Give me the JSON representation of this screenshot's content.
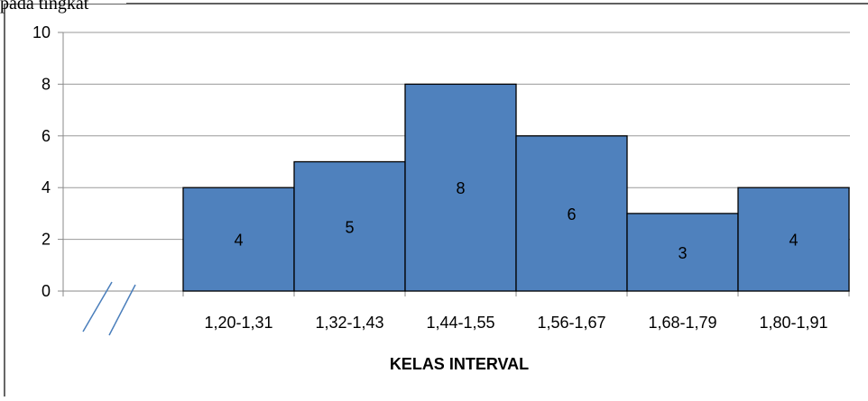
{
  "top_text": "pada tingkat",
  "chart_data": {
    "type": "bar",
    "title": "",
    "xlabel": "KELAS INTERVAL",
    "ylabel": "",
    "categories": [
      "1,20-1,31",
      "1,32-1,43",
      "1,44-1,55",
      "1,56-1,67",
      "1,68-1,79",
      "1,80-1,91"
    ],
    "values": [
      4,
      5,
      8,
      6,
      3,
      4
    ],
    "data_labels": [
      "4",
      "5",
      "8",
      "6",
      "3",
      "4"
    ],
    "ylim": [
      0,
      10
    ],
    "yticks": [
      0,
      2,
      4,
      6,
      8,
      10
    ],
    "ytick_labels": [
      "0",
      "2",
      "4",
      "6",
      "8",
      "10"
    ],
    "grid": true,
    "axis_break": true,
    "bar_color": "#4f81bd",
    "bar_border_color": "#000000",
    "grid_color": "#9a9a9a"
  }
}
